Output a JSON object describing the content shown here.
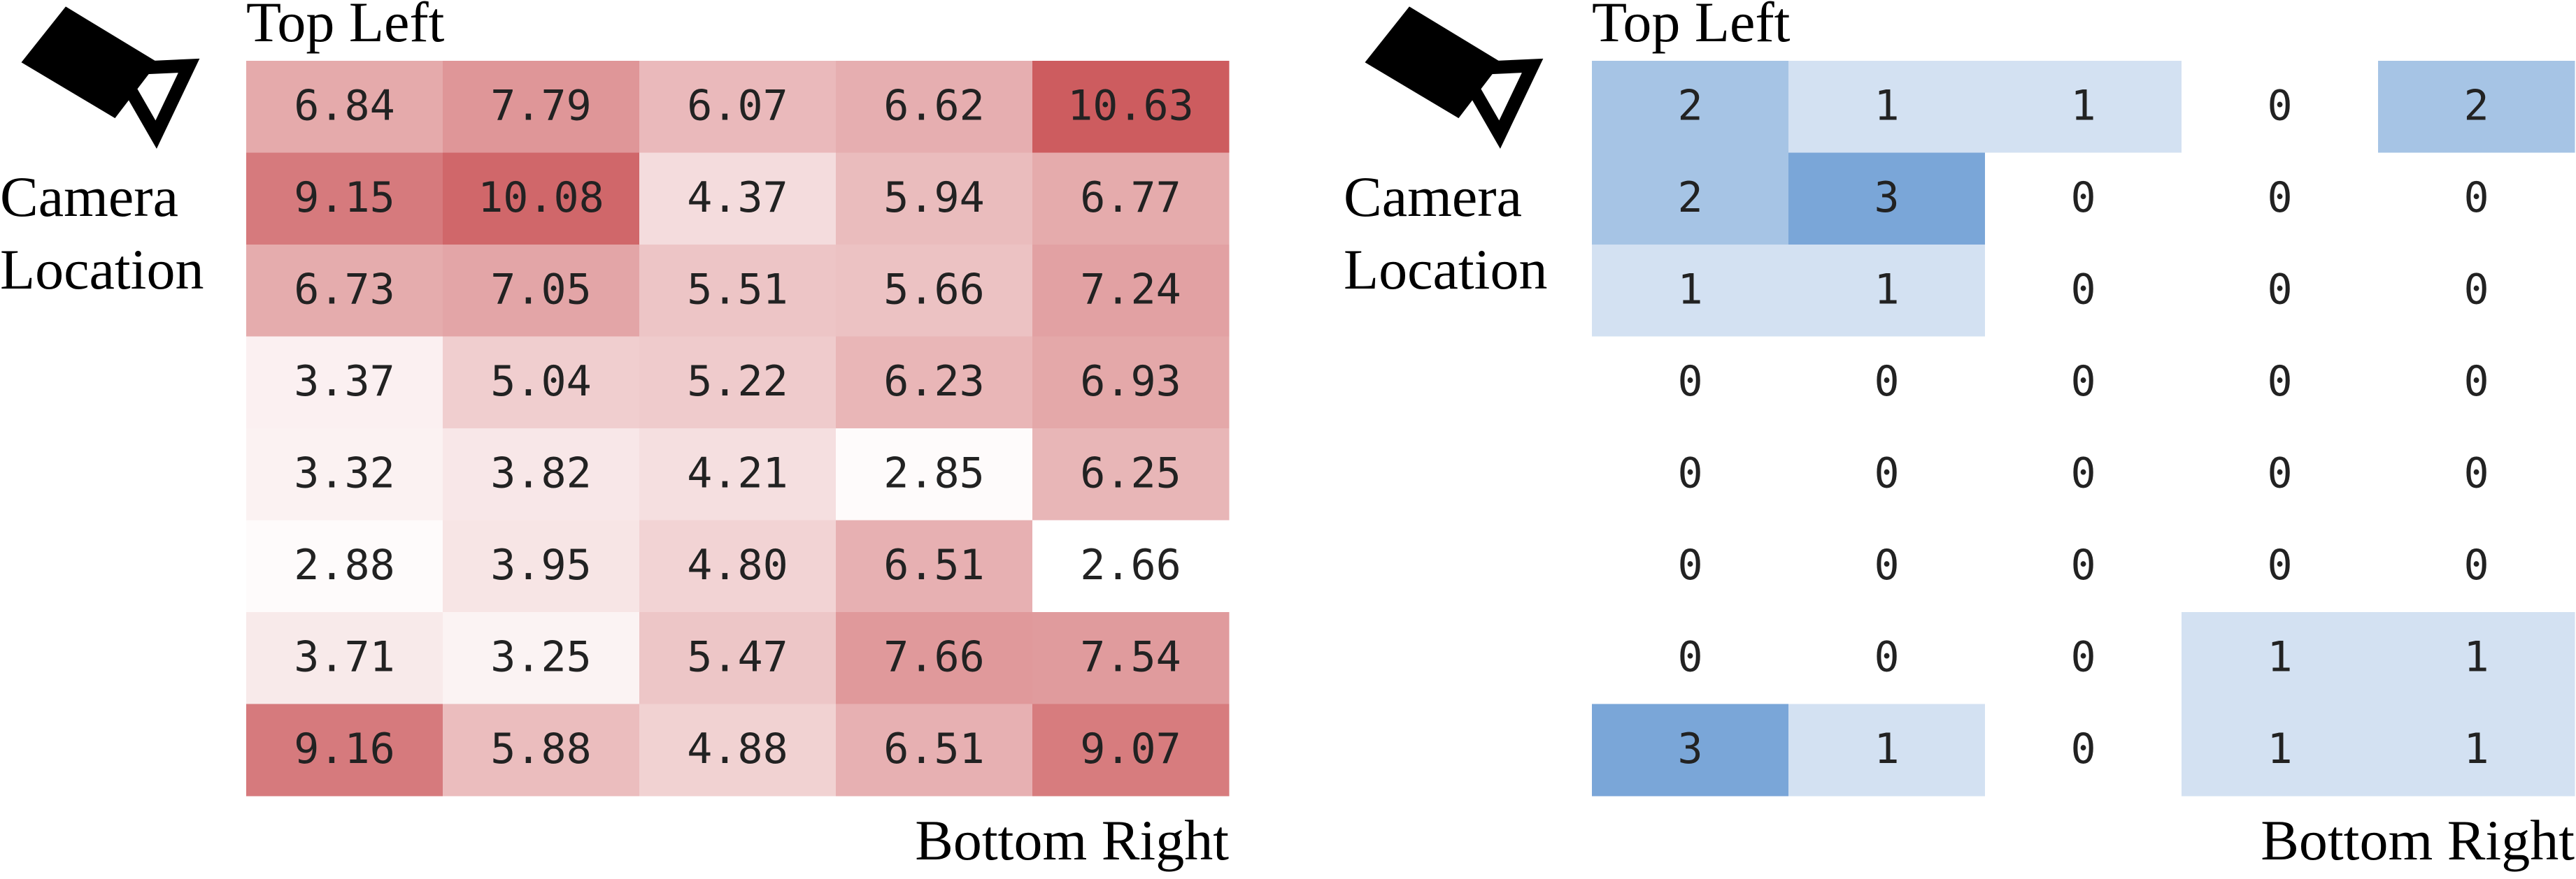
{
  "chart_data": [
    {
      "type": "heatmap",
      "top_label": "Top Left",
      "side_label": "Camera Location",
      "bottom_label": "Bottom Right",
      "color": "#cd5c5f",
      "values": [
        [
          6.84,
          7.79,
          6.07,
          6.62,
          10.63
        ],
        [
          9.15,
          10.08,
          4.37,
          5.94,
          6.77
        ],
        [
          6.73,
          7.05,
          5.51,
          5.66,
          7.24
        ],
        [
          3.37,
          5.04,
          5.22,
          6.23,
          6.93
        ],
        [
          3.32,
          3.82,
          4.21,
          2.85,
          6.25
        ],
        [
          2.88,
          3.95,
          4.8,
          6.51,
          2.66
        ],
        [
          3.71,
          3.25,
          5.47,
          7.66,
          7.54
        ],
        [
          9.16,
          5.88,
          4.88,
          6.51,
          9.07
        ]
      ],
      "value_labels": [
        [
          "6.84",
          "7.79",
          "6.07",
          "6.62",
          "10.63"
        ],
        [
          "9.15",
          "10.08",
          "4.37",
          "5.94",
          "6.77"
        ],
        [
          "6.73",
          "7.05",
          "5.51",
          "5.66",
          "7.24"
        ],
        [
          "3.37",
          "5.04",
          "5.22",
          "6.23",
          "6.93"
        ],
        [
          "3.32",
          "3.82",
          "4.21",
          "2.85",
          "6.25"
        ],
        [
          "2.88",
          "3.95",
          "4.80",
          "6.51",
          "2.66"
        ],
        [
          "3.71",
          "3.25",
          "5.47",
          "7.66",
          "7.54"
        ],
        [
          "9.16",
          "5.88",
          "4.88",
          "6.51",
          "9.07"
        ]
      ]
    },
    {
      "type": "heatmap",
      "top_label": "Top Left",
      "side_label": "Camera Location",
      "bottom_label": "Bottom Right",
      "color": "#7aa6d8",
      "values": [
        [
          2,
          1,
          1,
          0,
          2
        ],
        [
          2,
          3,
          0,
          0,
          0
        ],
        [
          1,
          1,
          0,
          0,
          0
        ],
        [
          0,
          0,
          0,
          0,
          0
        ],
        [
          0,
          0,
          0,
          0,
          0
        ],
        [
          0,
          0,
          0,
          0,
          0
        ],
        [
          0,
          0,
          0,
          1,
          1
        ],
        [
          3,
          1,
          0,
          1,
          1
        ]
      ]
    }
  ]
}
